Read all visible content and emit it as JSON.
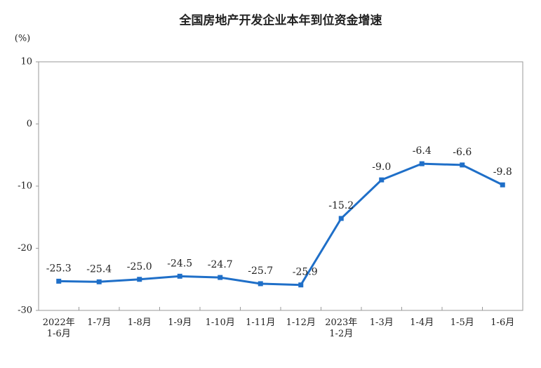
{
  "chart_data": {
    "type": "line",
    "title": "全国房地产开发企业本年到位资金增速",
    "unit_label": "(%)",
    "categories": [
      "2022年\n1-6月",
      "1-7月",
      "1-8月",
      "1-9月",
      "1-10月",
      "1-11月",
      "1-12月",
      "2023年\n1-2月",
      "1-3月",
      "1-4月",
      "1-5月",
      "1-6月"
    ],
    "values": [
      -25.3,
      -25.4,
      -25.0,
      -24.5,
      -24.7,
      -25.7,
      -25.9,
      -15.2,
      -9.0,
      -6.4,
      -6.6,
      -9.8
    ],
    "value_labels": [
      "-25.3",
      "-25.4",
      "-25.0",
      "-24.5",
      "-24.7",
      "-25.7",
      "-25.9",
      "-15.2",
      "-9.0",
      "-6.4",
      "-6.6",
      "-9.8"
    ],
    "color": "#1f6fc8",
    "ylim": [
      -30,
      10
    ],
    "yticks": [
      -30,
      -20,
      -10,
      0,
      10
    ]
  }
}
